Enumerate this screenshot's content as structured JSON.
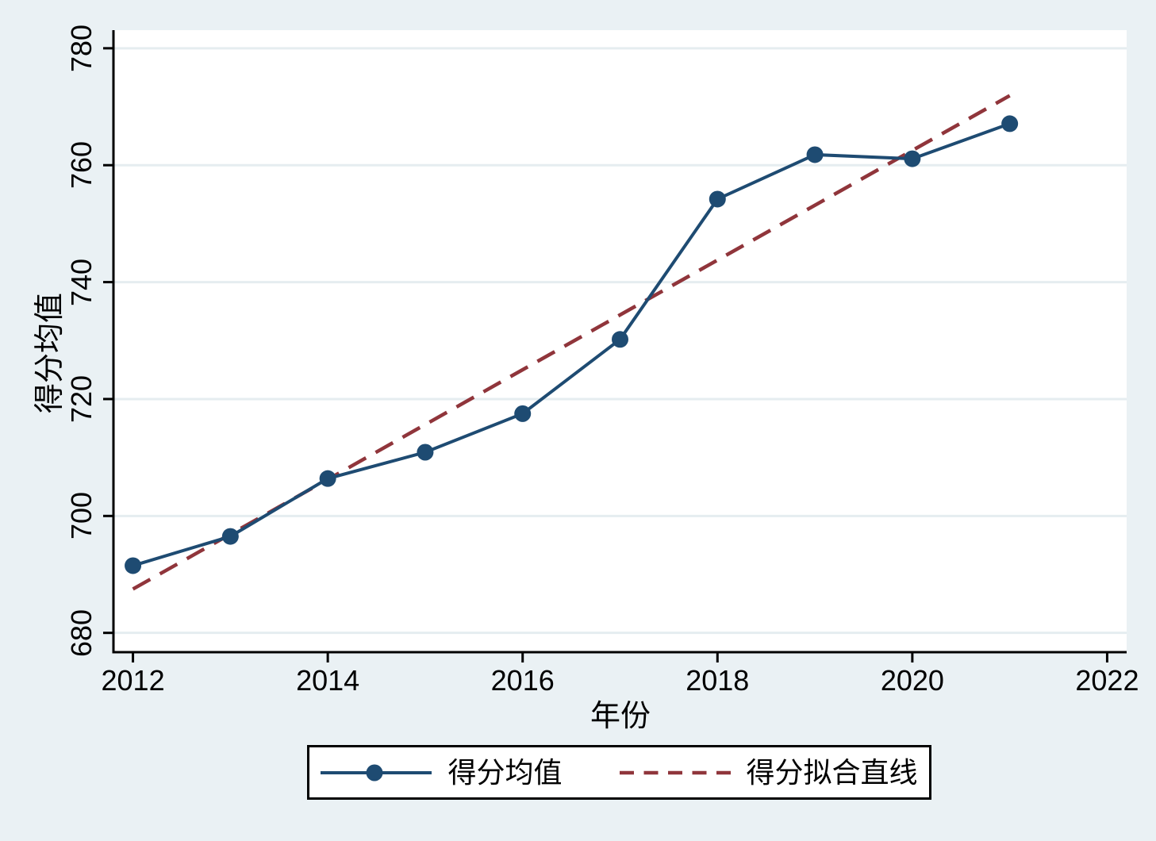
{
  "figure": {
    "background": "#eaf1f4",
    "plot_background": "#ffffff",
    "grid_color": "#e5edf0",
    "axis_color": "#000000"
  },
  "chart_data": {
    "type": "line",
    "title": "",
    "xlabel": "年份",
    "ylabel": "得分均值",
    "x": [
      2012,
      2013,
      2014,
      2015,
      2016,
      2017,
      2018,
      2019,
      2020,
      2021
    ],
    "series": [
      {
        "name": "得分均值",
        "style": "solid-with-markers",
        "color": "#1e4b72",
        "values": [
          691.5,
          696.5,
          706.4,
          710.9,
          717.5,
          730.2,
          754.2,
          761.8,
          761.1,
          767.1
        ]
      },
      {
        "name": "得分拟合直线",
        "style": "dashed",
        "color": "#90353b",
        "x": [
          2012,
          2021
        ],
        "values": [
          687.5,
          771.9
        ]
      }
    ],
    "xticks": [
      2012,
      2014,
      2016,
      2018,
      2020,
      2022
    ],
    "yticks": [
      680,
      700,
      720,
      740,
      760,
      780
    ],
    "xlim": [
      2011.8,
      2022.2
    ],
    "ylim": [
      676.7,
      783.1
    ],
    "grid": "horizontal",
    "legend_position": "bottom"
  }
}
